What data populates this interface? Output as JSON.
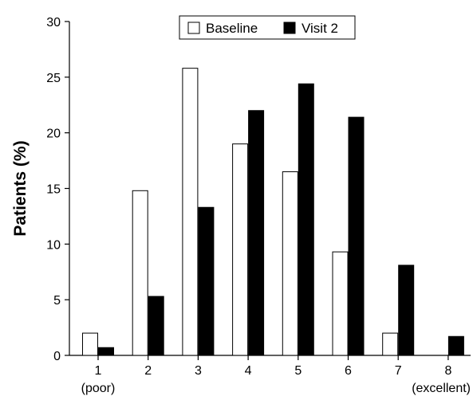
{
  "chart_data": {
    "type": "bar",
    "title": "",
    "xlabel": "",
    "ylabel": "Patients (%)",
    "ylim": [
      0,
      30
    ],
    "yticks": [
      0,
      5,
      10,
      15,
      20,
      25,
      30
    ],
    "categories": [
      "1",
      "2",
      "3",
      "4",
      "5",
      "6",
      "7",
      "8"
    ],
    "category_sublabels": [
      "(poor)",
      "",
      "",
      "",
      "",
      "",
      "",
      "(excellent)"
    ],
    "series": [
      {
        "name": "Baseline",
        "values": [
          2.0,
          14.8,
          25.8,
          19.0,
          16.5,
          9.3,
          2.0,
          0.0
        ],
        "color": "#ffffff"
      },
      {
        "name": "Visit 2",
        "values": [
          0.7,
          5.3,
          13.3,
          22.0,
          24.4,
          21.4,
          8.1,
          1.7
        ],
        "color": "#000000"
      }
    ],
    "legend_position": "top-center",
    "grid": false
  }
}
